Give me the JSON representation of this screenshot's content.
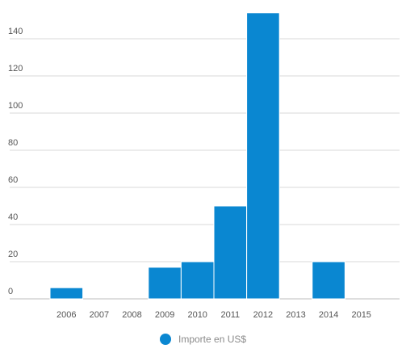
{
  "chart_data": {
    "type": "bar",
    "categories": [
      "2006",
      "2007",
      "2008",
      "2009",
      "2010",
      "2011",
      "2012",
      "2013",
      "2014",
      "2015"
    ],
    "series": [
      {
        "name": "Importe en US$",
        "values": [
          6,
          0,
          0,
          17,
          20,
          50,
          154,
          0,
          20,
          0
        ]
      }
    ],
    "y_ticks": [
      0,
      20,
      40,
      60,
      80,
      100,
      120,
      140
    ],
    "ylim": [
      0,
      155
    ],
    "grid": true,
    "legend_position": "bottom-center",
    "colors": {
      "bar": "#0a87d1",
      "grid": "#d9d9d9"
    }
  }
}
